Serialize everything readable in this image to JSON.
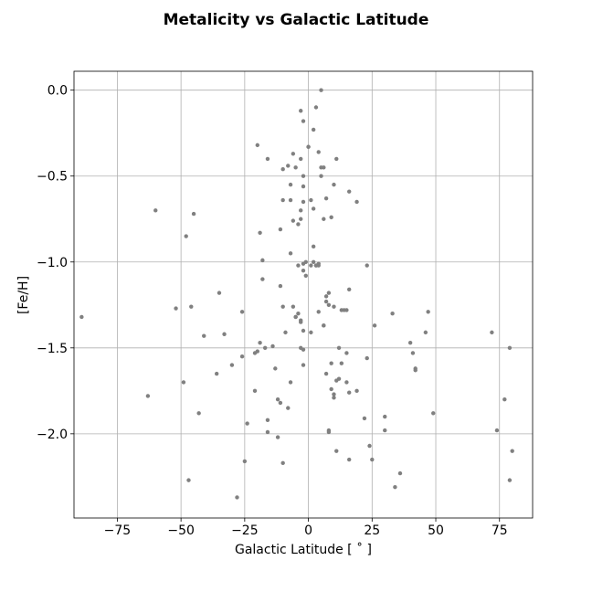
{
  "chart_data": {
    "type": "scatter",
    "title": "Metalicity vs Galactic Latitude",
    "xlabel": "Galactic Latitude [$^\\circ$]",
    "xlabel_display": "Galactic Latitude [ ˚ ]",
    "ylabel": "[Fe/H]",
    "xlim": [
      -92,
      88
    ],
    "ylim": [
      -2.49,
      0.11
    ],
    "xticks": [
      -75,
      -50,
      -25,
      0,
      25,
      50,
      75
    ],
    "xtick_labels": [
      "−75",
      "−50",
      "−25",
      "0",
      "25",
      "50",
      "75"
    ],
    "yticks": [
      0.0,
      -0.5,
      -1.0,
      -1.5,
      -2.0
    ],
    "ytick_labels": [
      "0.0",
      "−0.5",
      "−1.0",
      "−1.5",
      "−2.0"
    ],
    "grid": true,
    "marker_color": "#808080",
    "points": [
      [
        -89,
        -1.32
      ],
      [
        -63,
        -1.78
      ],
      [
        -60,
        -0.7
      ],
      [
        -52,
        -1.27
      ],
      [
        -49,
        -1.7
      ],
      [
        -48,
        -0.85
      ],
      [
        -47,
        -2.27
      ],
      [
        -46,
        -1.26
      ],
      [
        -45,
        -0.72
      ],
      [
        -43,
        -1.88
      ],
      [
        -41,
        -1.43
      ],
      [
        -36,
        -1.65
      ],
      [
        -35,
        -1.18
      ],
      [
        -33,
        -1.42
      ],
      [
        -30,
        -1.6
      ],
      [
        -28,
        -2.37
      ],
      [
        -26,
        -1.29
      ],
      [
        -26,
        -1.55
      ],
      [
        -25,
        -2.16
      ],
      [
        -24,
        -1.94
      ],
      [
        -21,
        -1.75
      ],
      [
        -21,
        -1.53
      ],
      [
        -20,
        -0.32
      ],
      [
        -20,
        -1.52
      ],
      [
        -19,
        -0.83
      ],
      [
        -19,
        -1.47
      ],
      [
        -18,
        -0.99
      ],
      [
        -18,
        -1.1
      ],
      [
        -17,
        -1.5
      ],
      [
        -16,
        -1.92
      ],
      [
        -16,
        -1.99
      ],
      [
        -16,
        -0.4
      ],
      [
        -14,
        -1.49
      ],
      [
        -13,
        -1.62
      ],
      [
        -12,
        -1.8
      ],
      [
        -12,
        -2.02
      ],
      [
        -11,
        -0.81
      ],
      [
        -11,
        -1.14
      ],
      [
        -11,
        -1.82
      ],
      [
        -10,
        -0.64
      ],
      [
        -10,
        -0.46
      ],
      [
        -10,
        -1.26
      ],
      [
        -10,
        -2.17
      ],
      [
        -9,
        -1.41
      ],
      [
        -8,
        -1.85
      ],
      [
        -8,
        -0.44
      ],
      [
        -7,
        -0.95
      ],
      [
        -7,
        -1.7
      ],
      [
        -7,
        -0.64
      ],
      [
        -7,
        -0.55
      ],
      [
        -6,
        -0.37
      ],
      [
        -6,
        -0.76
      ],
      [
        -6,
        -1.26
      ],
      [
        -5,
        -1.32
      ],
      [
        -5,
        -1.32
      ],
      [
        -5,
        -0.45
      ],
      [
        -4,
        -0.78
      ],
      [
        -4,
        -1.3
      ],
      [
        -4,
        -1.02
      ],
      [
        -3,
        -1.34
      ],
      [
        -3,
        -1.35
      ],
      [
        -3,
        -0.12
      ],
      [
        -3,
        -0.4
      ],
      [
        -3,
        -0.7
      ],
      [
        -3,
        -0.75
      ],
      [
        -3,
        -1.5
      ],
      [
        -2,
        -0.18
      ],
      [
        -2,
        -0.5
      ],
      [
        -2,
        -0.56
      ],
      [
        -2,
        -0.65
      ],
      [
        -2,
        -1.01
      ],
      [
        -2,
        -1.05
      ],
      [
        -2,
        -1.51
      ],
      [
        -2,
        -1.6
      ],
      [
        -2,
        -1.4
      ],
      [
        -1,
        -1.0
      ],
      [
        -1,
        -1.08
      ],
      [
        0,
        -0.33
      ],
      [
        0,
        -0.33
      ],
      [
        1,
        -0.64
      ],
      [
        1,
        -1.02
      ],
      [
        1,
        -1.41
      ],
      [
        2,
        -0.23
      ],
      [
        2,
        -0.69
      ],
      [
        2,
        -0.91
      ],
      [
        2,
        -1.0
      ],
      [
        3,
        -0.1
      ],
      [
        3,
        -1.02
      ],
      [
        3,
        -1.02
      ],
      [
        4,
        -0.36
      ],
      [
        4,
        -1.01
      ],
      [
        4,
        -1.29
      ],
      [
        4,
        -1.02
      ],
      [
        5,
        0.0
      ],
      [
        5,
        -0.5
      ],
      [
        5,
        -0.45
      ],
      [
        6,
        -0.45
      ],
      [
        6,
        -0.75
      ],
      [
        6,
        -1.37
      ],
      [
        6,
        -1.37
      ],
      [
        7,
        -0.63
      ],
      [
        7,
        -1.23
      ],
      [
        7,
        -1.2
      ],
      [
        7,
        -1.65
      ],
      [
        8,
        -1.18
      ],
      [
        8,
        -1.25
      ],
      [
        8,
        -1.99
      ],
      [
        8,
        -1.98
      ],
      [
        9,
        -0.74
      ],
      [
        9,
        -1.59
      ],
      [
        9,
        -1.74
      ],
      [
        10,
        -0.55
      ],
      [
        10,
        -1.26
      ],
      [
        10,
        -1.77
      ],
      [
        10,
        -1.79
      ],
      [
        11,
        -0.4
      ],
      [
        11,
        -1.69
      ],
      [
        11,
        -2.1
      ],
      [
        12,
        -1.5
      ],
      [
        12,
        -1.68
      ],
      [
        13,
        -1.59
      ],
      [
        13,
        -1.28
      ],
      [
        14,
        -1.28
      ],
      [
        15,
        -1.53
      ],
      [
        15,
        -1.7
      ],
      [
        15,
        -1.28
      ],
      [
        16,
        -0.59
      ],
      [
        16,
        -1.16
      ],
      [
        16,
        -1.76
      ],
      [
        16,
        -2.15
      ],
      [
        19,
        -0.65
      ],
      [
        19,
        -1.75
      ],
      [
        22,
        -1.91
      ],
      [
        23,
        -1.56
      ],
      [
        23,
        -1.02
      ],
      [
        24,
        -2.07
      ],
      [
        25,
        -2.15
      ],
      [
        26,
        -1.37
      ],
      [
        30,
        -1.9
      ],
      [
        30,
        -1.98
      ],
      [
        33,
        -1.3
      ],
      [
        34,
        -2.31
      ],
      [
        36,
        -2.23
      ],
      [
        40,
        -1.47
      ],
      [
        41,
        -1.53
      ],
      [
        42,
        -1.62
      ],
      [
        42,
        -1.63
      ],
      [
        46,
        -1.41
      ],
      [
        47,
        -1.29
      ],
      [
        49,
        -1.88
      ],
      [
        72,
        -1.41
      ],
      [
        74,
        -1.98
      ],
      [
        77,
        -1.8
      ],
      [
        79,
        -1.5
      ],
      [
        79,
        -2.27
      ],
      [
        80,
        -2.1
      ]
    ]
  }
}
